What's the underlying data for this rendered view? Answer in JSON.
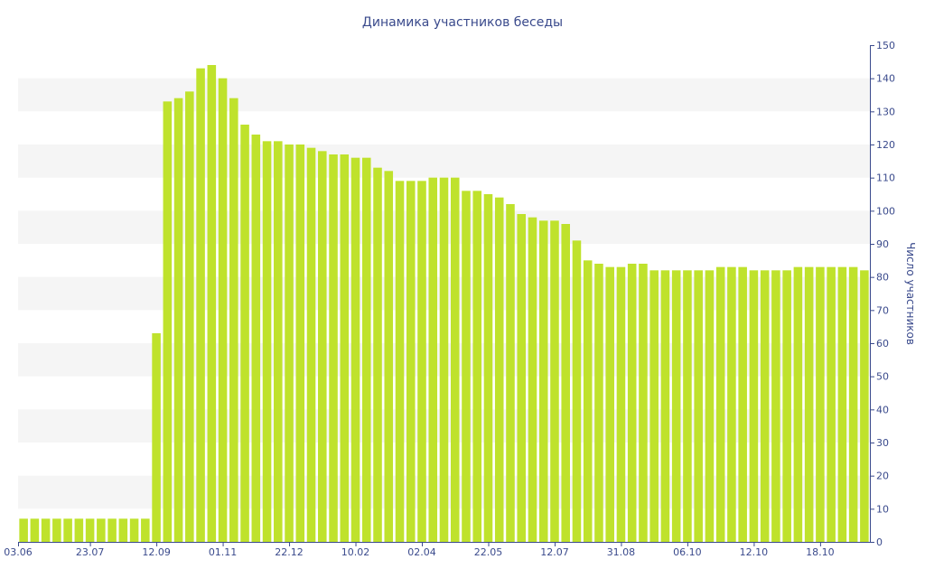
{
  "colors": {
    "bar": "#bfe22c",
    "band": "#f5f5f5",
    "text": "#3a4a8c",
    "axis": "#3a4a8c"
  },
  "chart_data": {
    "type": "bar",
    "title": "Динамика участников беседы",
    "ylabel": "Число участников",
    "xlabel": "",
    "ylim": [
      0,
      150
    ],
    "y_ticks": [
      0,
      10,
      20,
      30,
      40,
      50,
      60,
      70,
      80,
      90,
      100,
      110,
      120,
      130,
      140,
      150
    ],
    "x_tick_labels": [
      {
        "index": 0,
        "label": "03.06"
      },
      {
        "index": 6,
        "label": "23.07"
      },
      {
        "index": 12,
        "label": "12.09"
      },
      {
        "index": 18,
        "label": "01.11"
      },
      {
        "index": 24,
        "label": "22.12"
      },
      {
        "index": 30,
        "label": "10.02"
      },
      {
        "index": 36,
        "label": "02.04"
      },
      {
        "index": 42,
        "label": "22.05"
      },
      {
        "index": 48,
        "label": "12.07"
      },
      {
        "index": 54,
        "label": "31.08"
      },
      {
        "index": 60,
        "label": "06.10"
      },
      {
        "index": 66,
        "label": "12.10"
      },
      {
        "index": 72,
        "label": "18.10"
      }
    ],
    "grid": "alternating horizontal bands",
    "values": [
      7,
      7,
      7,
      7,
      7,
      7,
      7,
      7,
      7,
      7,
      7,
      7,
      63,
      133,
      134,
      136,
      143,
      144,
      140,
      134,
      126,
      123,
      121,
      121,
      120,
      120,
      119,
      118,
      117,
      117,
      116,
      116,
      113,
      112,
      109,
      109,
      109,
      110,
      110,
      110,
      106,
      106,
      105,
      104,
      102,
      99,
      98,
      97,
      97,
      96,
      91,
      85,
      84,
      83,
      83,
      84,
      84,
      82,
      82,
      82,
      82,
      82,
      82,
      83,
      83,
      83,
      82,
      82,
      82,
      82,
      83,
      83,
      83,
      83,
      83,
      83,
      82
    ]
  }
}
